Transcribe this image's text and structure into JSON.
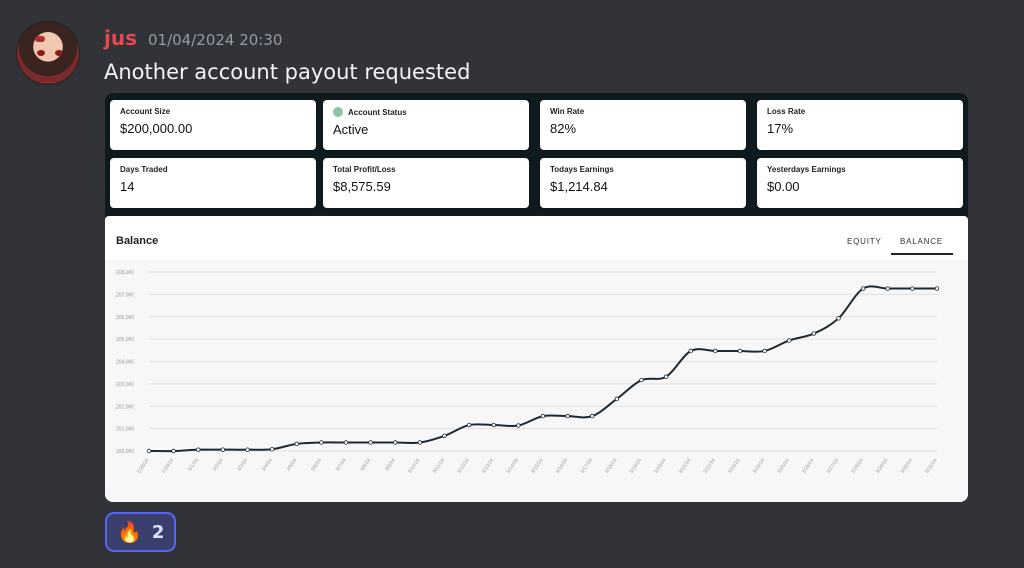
{
  "message": {
    "username": "jus",
    "timestamp": "01/04/2024 20:30",
    "text": "Another account payout requested"
  },
  "stats": [
    {
      "label": "Account Size",
      "value": "$200,000.00",
      "dot": false
    },
    {
      "label": "Account Status",
      "value": "Active",
      "dot": true
    },
    {
      "label": "Win Rate",
      "value": "82%",
      "dot": false
    },
    {
      "label": "Loss Rate",
      "value": "17%",
      "dot": false
    },
    {
      "label": "Days Traded",
      "value": "14",
      "dot": false
    },
    {
      "label": "Total Profit/Loss",
      "value": "$8,575.59",
      "dot": false
    },
    {
      "label": "Todays Earnings",
      "value": "$1,214.84",
      "dot": false
    },
    {
      "label": "Yesterdays Earnings",
      "value": "$0.00",
      "dot": false
    }
  ],
  "status_dot_color": "#8fc3a5",
  "chart_panel": {
    "title": "Balance",
    "tabs": [
      "EQUITY",
      "BALANCE"
    ],
    "active_tab": "BALANCE"
  },
  "chart_data": {
    "type": "line",
    "title": "Balance",
    "xlabel": "",
    "ylabel": "",
    "ylim": [
      200000,
      208000
    ],
    "yticks": [
      "200,000",
      "201,000",
      "202,000",
      "203,000",
      "204,000",
      "205,000",
      "206,000",
      "207,000",
      "208,000"
    ],
    "categories": [
      "2/28/24",
      "2/29/24",
      "3/1/24",
      "3/2/24",
      "3/3/24",
      "3/4/24",
      "3/5/24",
      "3/6/24",
      "3/7/24",
      "3/8/24",
      "3/9/24",
      "3/10/24",
      "3/11/24",
      "3/12/24",
      "3/13/24",
      "3/14/24",
      "3/15/24",
      "3/16/24",
      "3/17/24",
      "3/18/24",
      "3/19/24",
      "3/20/24",
      "3/21/24",
      "3/22/24",
      "3/23/24",
      "3/24/24",
      "3/25/24",
      "3/26/24",
      "3/27/24",
      "3/28/24",
      "3/29/24",
      "3/30/24",
      "3/31/24"
    ],
    "series": [
      {
        "values": [
          200000,
          200000,
          200060,
          200060,
          200060,
          200080,
          200320,
          200380,
          200380,
          200380,
          200380,
          200380,
          200680,
          201160,
          201160,
          201140,
          201560,
          201560,
          201560,
          202330,
          203170,
          203320,
          204470,
          204470,
          204470,
          204470,
          204940,
          205250,
          205930,
          207260,
          207260,
          207260,
          207260
        ]
      }
    ],
    "line_color": "#1e2a33",
    "grid": true
  },
  "reaction": {
    "emoji": "🔥",
    "count": "2"
  }
}
